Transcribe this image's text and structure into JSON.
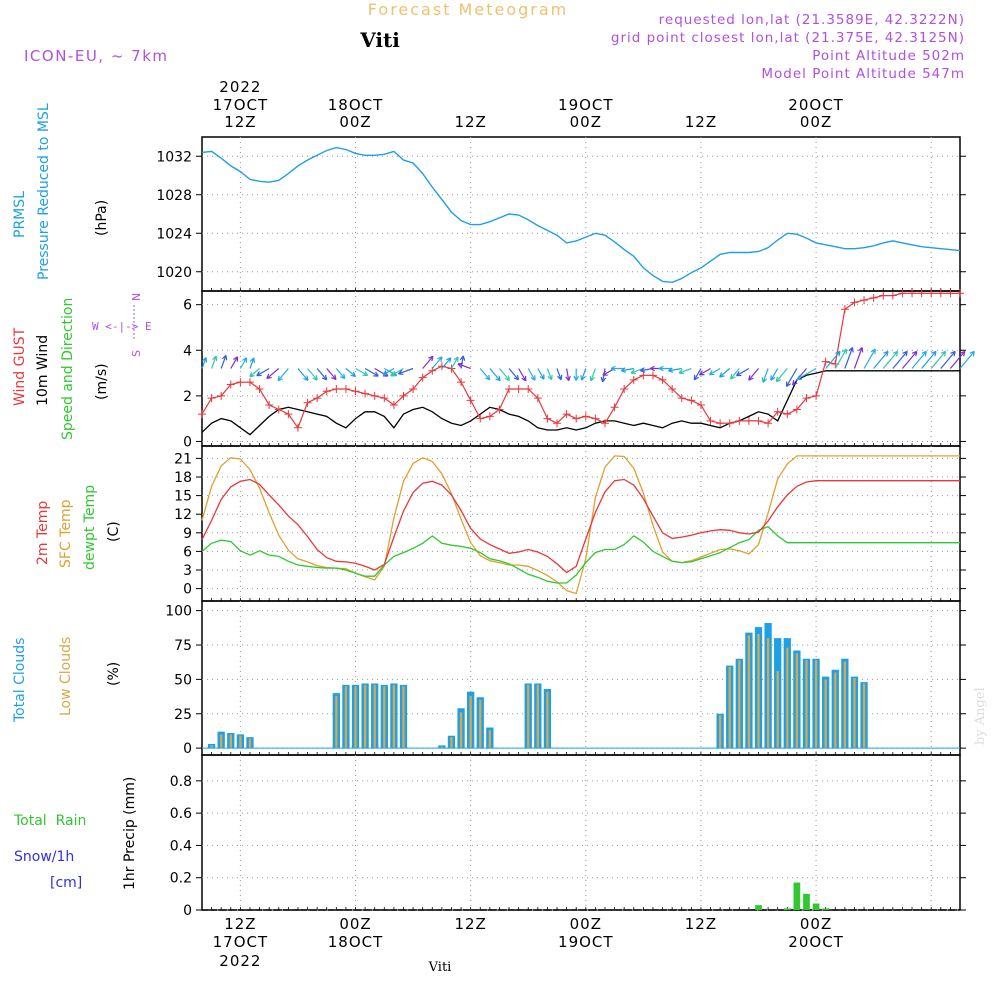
{
  "header": {
    "title": "Forecast Meteogram",
    "location": "Viti",
    "model": "ICON-EU, ~ 7km",
    "requested": "requested lon,lat (21.3589E, 42.3222N)",
    "closest": "grid point closest lon,lat (21.375E, 42.3125N)",
    "point_alt": "Point Altitude 502m",
    "model_alt": "Model Point Altitude 547m",
    "credit": "by Angel",
    "footer": "Viti"
  },
  "time_axis": {
    "hours_from_start": [
      0,
      12,
      24,
      36,
      48,
      60,
      72
    ],
    "top_labels": [
      [
        "2022",
        "17OCT",
        "12Z"
      ],
      [
        "",
        "18OCT",
        "00Z"
      ],
      [
        "",
        "",
        "12Z"
      ],
      [
        "",
        "19OCT",
        "00Z"
      ],
      [
        "",
        "",
        "12Z"
      ],
      [
        "",
        "20OCT",
        "00Z"
      ]
    ],
    "bottom_labels": [
      [
        "12Z",
        "17OCT",
        "2022"
      ],
      [
        "00Z",
        "18OCT",
        ""
      ],
      [
        "12Z",
        "",
        ""
      ],
      [
        "00Z",
        "19OCT",
        ""
      ],
      [
        "12Z",
        "",
        ""
      ],
      [
        "00Z",
        "20OCT",
        ""
      ]
    ]
  },
  "panel_labels": {
    "pressure": [
      "PRMSL",
      "Pressure Reduced to MSL",
      "(hPa)"
    ],
    "wind": [
      "Wind GUST",
      "10m Wind",
      "Speed and Direction",
      "(m/s)"
    ],
    "compass": [
      "N",
      "W <-|-> E",
      "S"
    ],
    "temp": [
      "2m Temp",
      "SFC Temp",
      "dewpt Temp",
      "(C)"
    ],
    "clouds": [
      "Total Clouds",
      "Low Clouds",
      "(%)"
    ],
    "precip": [
      "Total  Rain",
      "Snow/1h",
      "[cm]",
      "1hr Precip (mm)"
    ]
  },
  "colors": {
    "pressure": "#1ea0e6",
    "gust": "#e8383c",
    "wind": "#000000",
    "t2m": "#e8383c",
    "sfc": "#e0a030",
    "dew": "#30c830",
    "total_cloud": "#1ea0e6",
    "low_cloud": "#d8a84a",
    "rain": "#30c830",
    "snow": "#3030e0",
    "label_purple": "#b050e0",
    "title_orange": "#f0c070"
  },
  "chart_data": [
    {
      "type": "line",
      "name": "pressure",
      "ylim": [
        1018,
        1034
      ],
      "yticks": [
        1020,
        1024,
        1028,
        1032
      ],
      "x": [
        -4,
        -3,
        -2,
        -1,
        0,
        1,
        2,
        3,
        4,
        5,
        6,
        7,
        8,
        9,
        10,
        11,
        12,
        13,
        14,
        15,
        16,
        17,
        18,
        19,
        20,
        21,
        22,
        23,
        24,
        25,
        26,
        27,
        28,
        29,
        30,
        31,
        32,
        33,
        34,
        35,
        36,
        37,
        38,
        39,
        40,
        41,
        42,
        43,
        44,
        45,
        46,
        47,
        48,
        49,
        50,
        51,
        52,
        53,
        54,
        55,
        56,
        57,
        58,
        59,
        60,
        61,
        62,
        63,
        64,
        65,
        66,
        67,
        68,
        69,
        70,
        71,
        72,
        73,
        74,
        75
      ],
      "values": [
        1032.4,
        1032.5,
        1031.8,
        1031.0,
        1030.4,
        1029.6,
        1029.4,
        1029.3,
        1029.5,
        1030.2,
        1031.0,
        1031.6,
        1032.1,
        1032.6,
        1032.9,
        1032.7,
        1032.3,
        1032.1,
        1032.1,
        1032.2,
        1032.5,
        1031.6,
        1031.3,
        1030.2,
        1028.8,
        1027.5,
        1026.2,
        1025.3,
        1024.9,
        1024.9,
        1025.2,
        1025.6,
        1026.0,
        1025.9,
        1025.4,
        1024.8,
        1024.3,
        1023.8,
        1023.0,
        1023.2,
        1023.6,
        1024.0,
        1023.8,
        1023.1,
        1022.3,
        1021.6,
        1020.4,
        1019.6,
        1019.0,
        1018.9,
        1019.3,
        1019.9,
        1020.4,
        1021.1,
        1021.8,
        1022.0,
        1022.0,
        1022.0,
        1022.1,
        1022.5,
        1023.3,
        1024.0,
        1023.9,
        1023.5,
        1023.0,
        1022.8,
        1022.6,
        1022.4,
        1022.4,
        1022.5,
        1022.7,
        1023.0,
        1023.2,
        1023.0,
        1022.8,
        1022.6,
        1022.5,
        1022.4,
        1022.3,
        1022.2
      ]
    },
    {
      "type": "line",
      "name": "wind",
      "ylim": [
        -0.2,
        6.6
      ],
      "yticks": [
        0,
        2,
        4,
        6
      ],
      "x": [
        -4,
        -3,
        -2,
        -1,
        0,
        1,
        2,
        3,
        4,
        5,
        6,
        7,
        8,
        9,
        10,
        11,
        12,
        13,
        14,
        15,
        16,
        17,
        18,
        19,
        20,
        21,
        22,
        23,
        24,
        25,
        26,
        27,
        28,
        29,
        30,
        31,
        32,
        33,
        34,
        35,
        36,
        37,
        38,
        39,
        40,
        41,
        42,
        43,
        44,
        45,
        46,
        47,
        48,
        49,
        50,
        51,
        52,
        53,
        54,
        55,
        56,
        57,
        58,
        59,
        60,
        61,
        62,
        63,
        64,
        65,
        66,
        67,
        68,
        69,
        70,
        71,
        72,
        73,
        74,
        75
      ],
      "gust": [
        1.2,
        1.9,
        2.0,
        2.5,
        2.6,
        2.6,
        2.3,
        1.6,
        1.4,
        1.2,
        0.6,
        1.7,
        1.9,
        2.2,
        2.3,
        2.3,
        2.2,
        2.1,
        2.0,
        1.9,
        1.6,
        2.0,
        2.3,
        2.8,
        3.1,
        3.3,
        3.2,
        2.6,
        1.8,
        1.0,
        1.1,
        1.4,
        2.3,
        2.3,
        2.3,
        1.9,
        1.0,
        0.8,
        1.2,
        1.0,
        1.1,
        1.0,
        0.8,
        1.5,
        2.3,
        2.7,
        2.9,
        2.9,
        2.7,
        2.3,
        1.9,
        1.8,
        1.6,
        0.9,
        0.8,
        0.8,
        0.9,
        0.9,
        0.9,
        0.8,
        1.3,
        1.2,
        1.4,
        1.9,
        2.0,
        3.5,
        3.4,
        5.8,
        6.1,
        6.2,
        6.3,
        6.4,
        6.4,
        6.5,
        6.5,
        6.5,
        6.5,
        6.5,
        6.5,
        6.5
      ],
      "speed": [
        0.4,
        0.8,
        1.0,
        0.9,
        0.6,
        0.3,
        0.7,
        1.1,
        1.4,
        1.5,
        1.4,
        1.3,
        1.2,
        1.1,
        0.8,
        0.6,
        1.0,
        1.3,
        1.3,
        1.1,
        0.6,
        1.2,
        1.4,
        1.5,
        1.3,
        1.0,
        0.8,
        0.7,
        0.9,
        1.2,
        1.5,
        1.4,
        1.2,
        1.1,
        0.9,
        0.6,
        0.5,
        0.5,
        0.6,
        0.5,
        0.6,
        0.8,
        0.9,
        0.9,
        0.8,
        0.7,
        0.8,
        0.7,
        0.6,
        0.8,
        0.9,
        0.8,
        0.8,
        0.7,
        0.6,
        0.8,
        0.9,
        1.1,
        1.3,
        1.2,
        0.9,
        1.8,
        2.7,
        2.9,
        3.0,
        3.1,
        3.1,
        3.1,
        3.1,
        3.1,
        3.1,
        3.1,
        3.1,
        3.1,
        3.1,
        3.1,
        3.1,
        3.1,
        3.1,
        3.1
      ],
      "dir_deg": [
        200,
        200,
        200,
        210,
        210,
        200,
        50,
        60,
        50,
        40,
        320,
        320,
        320,
        320,
        320,
        310,
        300,
        300,
        300,
        300,
        60,
        60,
        70,
        220,
        220,
        220,
        210,
        190,
        110,
        320,
        320,
        320,
        320,
        330,
        330,
        330,
        340,
        340,
        350,
        0,
        20,
        20,
        10,
        60,
        90,
        80,
        70,
        80,
        90,
        90,
        80,
        70,
        30,
        60,
        60,
        50,
        40,
        60,
        40,
        20,
        30,
        40,
        30,
        40,
        60,
        220,
        210,
        200,
        200,
        210,
        220,
        220,
        220,
        220,
        220,
        220,
        220,
        220,
        220,
        220
      ]
    },
    {
      "type": "line",
      "name": "temperature",
      "ylim": [
        -2,
        23
      ],
      "yticks": [
        0,
        3,
        6,
        9,
        12,
        15,
        18,
        21
      ],
      "x": [
        -4,
        -3,
        -2,
        -1,
        0,
        1,
        2,
        3,
        4,
        5,
        6,
        7,
        8,
        9,
        10,
        11,
        12,
        13,
        14,
        15,
        16,
        17,
        18,
        19,
        20,
        21,
        22,
        23,
        24,
        25,
        26,
        27,
        28,
        29,
        30,
        31,
        32,
        33,
        34,
        35,
        36,
        37,
        38,
        39,
        40,
        41,
        42,
        43,
        44,
        45,
        46,
        47,
        48,
        49,
        50,
        51,
        52,
        53,
        54,
        55,
        56,
        57,
        58,
        59,
        60,
        61,
        62,
        63,
        64,
        65,
        66,
        67,
        68,
        69,
        70,
        71,
        72,
        73,
        74,
        75
      ],
      "t2m": [
        7.9,
        11.0,
        14.4,
        16.4,
        17.3,
        17.6,
        16.8,
        15.1,
        13.5,
        11.7,
        10.3,
        8.4,
        6.3,
        5.0,
        4.4,
        4.3,
        4.1,
        3.6,
        3.0,
        3.9,
        8.3,
        12.5,
        15.5,
        17.0,
        17.3,
        16.7,
        15.1,
        12.6,
        9.7,
        8.0,
        7.1,
        6.4,
        5.7,
        5.9,
        6.3,
        5.9,
        5.2,
        4.0,
        2.6,
        3.6,
        8.0,
        12.3,
        15.6,
        17.4,
        17.6,
        16.7,
        14.5,
        11.7,
        9.0,
        8.1,
        8.3,
        8.6,
        9.0,
        9.3,
        9.5,
        9.4,
        9.0,
        8.8,
        9.1,
        10.9,
        13.2,
        15.1,
        16.5,
        17.2,
        17.4,
        17.4,
        17.4,
        17.4,
        17.4,
        17.4,
        17.4,
        17.4,
        17.4,
        17.4,
        17.4,
        17.4,
        17.4,
        17.4,
        17.4,
        17.4
      ],
      "sfc": [
        11.0,
        16.5,
        19.8,
        21.1,
        20.9,
        19.2,
        16.2,
        12.2,
        8.6,
        6.2,
        4.8,
        4.3,
        3.7,
        3.4,
        3.3,
        3.2,
        2.5,
        1.9,
        1.4,
        3.6,
        11.4,
        17.3,
        20.2,
        21.1,
        20.5,
        18.5,
        15.3,
        11.2,
        7.4,
        5.3,
        4.5,
        4.2,
        3.8,
        3.8,
        3.6,
        2.9,
        2.1,
        1.1,
        -0.3,
        -0.8,
        4.8,
        14.7,
        19.6,
        21.4,
        21.3,
        19.4,
        15.4,
        10.2,
        5.9,
        4.4,
        4.2,
        4.5,
        5.1,
        5.7,
        6.3,
        6.4,
        6.1,
        5.6,
        7.1,
        12.2,
        17.7,
        20.1,
        21.4,
        21.4,
        21.4,
        21.4,
        21.4,
        21.4,
        21.4,
        21.4,
        21.4,
        21.4,
        21.4,
        21.4,
        21.4,
        21.4,
        21.4,
        21.4,
        21.4,
        21.4
      ],
      "dew": [
        6.0,
        7.3,
        7.8,
        7.6,
        6.1,
        5.4,
        6.1,
        5.4,
        5.2,
        4.4,
        3.8,
        3.6,
        3.4,
        3.3,
        3.3,
        3.0,
        2.5,
        2.0,
        2.0,
        3.8,
        5.2,
        5.8,
        6.5,
        7.3,
        8.5,
        7.3,
        7.0,
        6.8,
        6.5,
        5.8,
        4.8,
        4.5,
        4.0,
        3.2,
        2.3,
        1.8,
        1.2,
        0.9,
        0.9,
        2.2,
        4.2,
        5.8,
        6.3,
        6.3,
        7.1,
        8.5,
        7.5,
        6.0,
        5.2,
        4.4,
        4.2,
        4.3,
        4.8,
        5.3,
        5.8,
        6.6,
        7.4,
        7.9,
        9.4,
        10.0,
        8.5,
        7.4,
        7.4,
        7.4,
        7.4,
        7.4,
        7.4,
        7.4,
        7.4,
        7.4,
        7.4,
        7.4,
        7.4,
        7.4,
        7.4,
        7.4,
        7.4,
        7.4,
        7.4,
        7.4
      ]
    },
    {
      "type": "bar",
      "name": "clouds",
      "ylim": [
        -5,
        107
      ],
      "yticks": [
        0,
        25,
        50,
        75,
        100
      ],
      "x": [
        -4,
        -3,
        -2,
        -1,
        0,
        1,
        2,
        3,
        4,
        5,
        6,
        7,
        8,
        9,
        10,
        11,
        12,
        13,
        14,
        15,
        16,
        17,
        18,
        19,
        20,
        21,
        22,
        23,
        24,
        25,
        26,
        27,
        28,
        29,
        30,
        31,
        32,
        33,
        34,
        35,
        36,
        37,
        38,
        39,
        40,
        41,
        42,
        43,
        44,
        45,
        46,
        47,
        48,
        49,
        50,
        51,
        52,
        53,
        54,
        55,
        56,
        57,
        58,
        59,
        60,
        61,
        62,
        63,
        64,
        65,
        66,
        67,
        68,
        69,
        70,
        71,
        72,
        73,
        74,
        75
      ],
      "total": [
        0,
        3,
        12,
        11,
        10,
        8,
        0,
        0,
        0,
        0,
        0,
        0,
        0,
        0,
        40,
        46,
        46,
        47,
        47,
        46,
        47,
        46,
        0,
        0,
        0,
        2,
        9,
        29,
        41,
        37,
        15,
        0,
        0,
        0,
        47,
        47,
        43,
        0,
        0,
        0,
        0,
        0,
        0,
        0,
        0,
        0,
        0,
        0,
        0,
        0,
        0,
        0,
        0,
        0,
        25,
        60,
        65,
        84,
        88,
        91,
        80,
        80,
        71,
        65,
        65,
        52,
        57,
        65,
        52,
        48,
        0,
        0,
        0,
        0,
        0,
        0,
        0,
        0,
        0,
        0
      ],
      "low": [
        0,
        2,
        10,
        10,
        9,
        7,
        0,
        0,
        0,
        0,
        0,
        0,
        0,
        0,
        38,
        45,
        45,
        46,
        46,
        45,
        46,
        45,
        0,
        0,
        0,
        1,
        8,
        26,
        38,
        35,
        13,
        0,
        0,
        0,
        46,
        46,
        41,
        0,
        0,
        0,
        0,
        0,
        0,
        0,
        0,
        0,
        0,
        0,
        0,
        0,
        0,
        0,
        0,
        0,
        24,
        59,
        64,
        82,
        83,
        80,
        56,
        73,
        69,
        64,
        64,
        50,
        55,
        63,
        51,
        47,
        0,
        0,
        0,
        0,
        0,
        0,
        0,
        0,
        0,
        0
      ]
    },
    {
      "type": "bar",
      "name": "precip",
      "ylim": [
        0,
        0.96
      ],
      "yticks": [
        0,
        0.2,
        0.4,
        0.6,
        0.8
      ],
      "x": [
        -4,
        -3,
        -2,
        -1,
        0,
        1,
        2,
        3,
        4,
        5,
        6,
        7,
        8,
        9,
        10,
        11,
        12,
        13,
        14,
        15,
        16,
        17,
        18,
        19,
        20,
        21,
        22,
        23,
        24,
        25,
        26,
        27,
        28,
        29,
        30,
        31,
        32,
        33,
        34,
        35,
        36,
        37,
        38,
        39,
        40,
        41,
        42,
        43,
        44,
        45,
        46,
        47,
        48,
        49,
        50,
        51,
        52,
        53,
        54,
        55,
        56,
        57,
        58,
        59,
        60,
        61,
        62,
        63,
        64,
        65,
        66,
        67,
        68,
        69,
        70,
        71,
        72,
        73,
        74,
        75
      ],
      "rain": [
        0,
        0,
        0,
        0,
        0,
        0,
        0,
        0,
        0,
        0,
        0,
        0,
        0,
        0,
        0,
        0,
        0,
        0,
        0,
        0,
        0,
        0,
        0,
        0,
        0,
        0,
        0,
        0,
        0,
        0,
        0,
        0,
        0,
        0,
        0,
        0,
        0,
        0,
        0,
        0,
        0,
        0,
        0,
        0,
        0,
        0,
        0,
        0,
        0,
        0,
        0,
        0,
        0,
        0,
        0,
        0,
        0,
        0,
        0.03,
        0,
        0,
        0.01,
        0.17,
        0.1,
        0.04,
        0.01,
        0,
        0,
        0,
        0,
        0,
        0,
        0,
        0,
        0,
        0,
        0,
        0,
        0,
        0
      ]
    }
  ]
}
